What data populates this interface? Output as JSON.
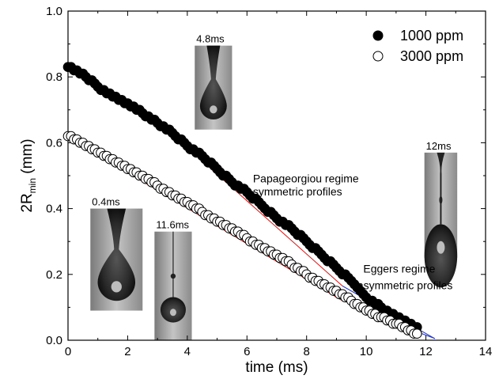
{
  "chart_data": {
    "type": "scatter",
    "title": "",
    "xlabel": "time (ms)",
    "ylabel_main": "2R",
    "ylabel_sub": "min",
    "ylabel_unit": " (mm)",
    "xlim": [
      0,
      14
    ],
    "ylim": [
      0,
      1.0
    ],
    "xticks": [
      0,
      2,
      4,
      6,
      8,
      10,
      12,
      14
    ],
    "yticks": [
      0.0,
      0.2,
      0.4,
      0.6,
      0.8,
      1.0
    ],
    "xtick_labels": [
      "0",
      "2",
      "4",
      "6",
      "8",
      "10",
      "12",
      "14"
    ],
    "ytick_labels": [
      "0.0",
      "0.2",
      "0.4",
      "0.6",
      "0.8",
      "1.0"
    ],
    "grid": false,
    "legend_position": "top-right",
    "series": [
      {
        "name": "1000 ppm",
        "marker": "filled-circle",
        "color": "#000000",
        "x": [
          0.0,
          0.5,
          1.0,
          1.5,
          2.0,
          2.5,
          3.0,
          3.5,
          4.0,
          4.5,
          5.0,
          5.5,
          6.0,
          6.5,
          7.0,
          7.5,
          8.0,
          8.5,
          9.0,
          9.5,
          10.0,
          10.5,
          11.0,
          11.5,
          11.7
        ],
        "y": [
          0.83,
          0.81,
          0.77,
          0.74,
          0.72,
          0.69,
          0.66,
          0.63,
          0.59,
          0.56,
          0.52,
          0.48,
          0.45,
          0.41,
          0.37,
          0.34,
          0.3,
          0.26,
          0.22,
          0.18,
          0.13,
          0.1,
          0.07,
          0.05,
          0.04
        ]
      },
      {
        "name": "3000 ppm",
        "marker": "open-circle",
        "color": "#000000",
        "x": [
          0.0,
          0.5,
          1.0,
          1.5,
          2.0,
          2.5,
          3.0,
          3.5,
          4.0,
          4.5,
          5.0,
          5.5,
          6.0,
          6.5,
          7.0,
          7.5,
          8.0,
          8.5,
          9.0,
          9.5,
          10.0,
          10.5,
          11.0,
          11.5,
          11.7
        ],
        "y": [
          0.62,
          0.6,
          0.57,
          0.55,
          0.52,
          0.5,
          0.47,
          0.44,
          0.42,
          0.39,
          0.36,
          0.34,
          0.31,
          0.28,
          0.26,
          0.23,
          0.2,
          0.17,
          0.15,
          0.12,
          0.09,
          0.07,
          0.05,
          0.03,
          0.02
        ]
      }
    ],
    "fit_lines": [
      {
        "color": "#d42020",
        "x": [
          0.0,
          9.2
        ],
        "y": [
          0.618,
          0.12
        ]
      },
      {
        "color": "#d42020",
        "x": [
          4.0,
          9.2
        ],
        "y": [
          0.585,
          0.165
        ]
      },
      {
        "color": "#2a3dbb",
        "x": [
          9.2,
          12.3
        ],
        "y": [
          0.165,
          0.005
        ]
      },
      {
        "color": "#2a3dbb",
        "x": [
          9.6,
          12.3
        ],
        "y": [
          0.098,
          0.005
        ]
      }
    ],
    "annotations": [
      {
        "text": "Papageorgiou regime",
        "x": 6.2,
        "y": 0.48
      },
      {
        "text": "symmetric profiles",
        "x": 6.2,
        "y": 0.44
      },
      {
        "text": "Eggers regime",
        "x": 9.9,
        "y": 0.205
      },
      {
        "text": "asymmetric profiles",
        "x": 9.7,
        "y": 0.155
      }
    ],
    "insets": [
      {
        "label": "4.8ms",
        "x0": 4.25,
        "y0": 0.895,
        "x1": 5.5,
        "y1": 0.64,
        "drop": "pendant"
      },
      {
        "label": "12ms",
        "x0": 11.95,
        "y0": 0.57,
        "x1": 13.05,
        "y1": 0.25,
        "drop": "thread"
      },
      {
        "label": "0.4ms",
        "x0": 0.75,
        "y0": 0.4,
        "x1": 2.5,
        "y1": 0.09,
        "drop": "pendant"
      },
      {
        "label": "11.6ms",
        "x0": 2.9,
        "y0": 0.33,
        "x1": 4.15,
        "y1": 0.0,
        "drop": "beads"
      }
    ]
  }
}
